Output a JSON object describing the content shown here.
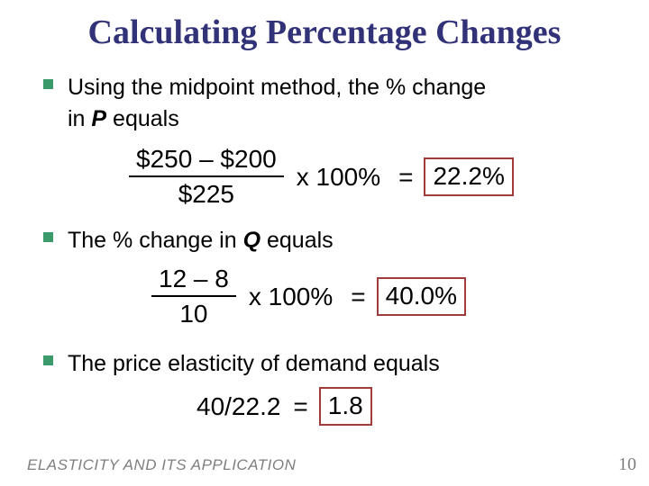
{
  "slide": {
    "title": "Calculating Percentage Changes",
    "footer": "ELASTICITY AND ITS APPLICATION",
    "page_number": "10"
  },
  "colors": {
    "title_text": "#323278",
    "bullet_square": "#3a9a6a",
    "result_box_border": "#a03c3c",
    "footer_text": "#7f7f7f",
    "body_text": "#000000",
    "background": "#ffffff"
  },
  "bullets": [
    {
      "line1": "Using the midpoint method, the % change",
      "line2_pre": "in ",
      "line2_var": "P",
      "line2_post": " equals"
    },
    {
      "pre": "The % change in ",
      "var": "Q",
      "post": " equals"
    },
    {
      "text": "The price elasticity of demand equals"
    }
  ],
  "formulas": [
    {
      "numerator": "$250 – $200",
      "denominator": "$225",
      "multiplier": "x 100%",
      "equals": "=",
      "result": "22.2%"
    },
    {
      "numerator": "12 – 8",
      "denominator": "10",
      "multiplier": "x 100%",
      "equals": "=",
      "result": "40.0%"
    },
    {
      "expression": "40/22.2",
      "equals": "=",
      "result": "1.8"
    }
  ]
}
